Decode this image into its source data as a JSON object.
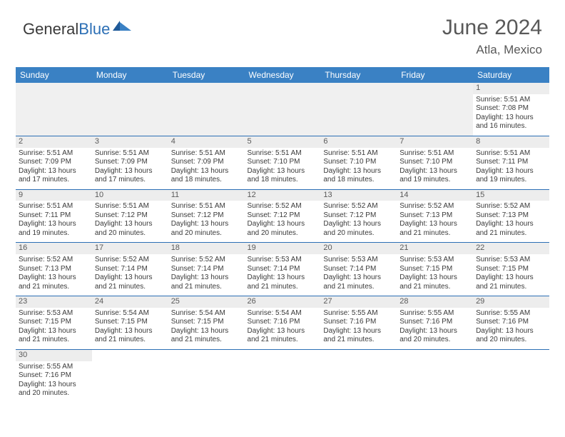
{
  "logo": {
    "text1": "General",
    "text2": "Blue"
  },
  "title": "June 2024",
  "location": "Atla, Mexico",
  "header_bg": "#3a81c4",
  "header_fg": "#ffffff",
  "border_color": "#2c6fb5",
  "daynum_bg": "#ededed",
  "empty_bg": "#f0f0f0",
  "text_color": "#3a3a3a",
  "columns": [
    "Sunday",
    "Monday",
    "Tuesday",
    "Wednesday",
    "Thursday",
    "Friday",
    "Saturday"
  ],
  "weeks": [
    [
      null,
      null,
      null,
      null,
      null,
      null,
      {
        "n": "1",
        "sr": "Sunrise: 5:51 AM",
        "ss": "Sunset: 7:08 PM",
        "d1": "Daylight: 13 hours",
        "d2": "and 16 minutes."
      }
    ],
    [
      {
        "n": "2",
        "sr": "Sunrise: 5:51 AM",
        "ss": "Sunset: 7:09 PM",
        "d1": "Daylight: 13 hours",
        "d2": "and 17 minutes."
      },
      {
        "n": "3",
        "sr": "Sunrise: 5:51 AM",
        "ss": "Sunset: 7:09 PM",
        "d1": "Daylight: 13 hours",
        "d2": "and 17 minutes."
      },
      {
        "n": "4",
        "sr": "Sunrise: 5:51 AM",
        "ss": "Sunset: 7:09 PM",
        "d1": "Daylight: 13 hours",
        "d2": "and 18 minutes."
      },
      {
        "n": "5",
        "sr": "Sunrise: 5:51 AM",
        "ss": "Sunset: 7:10 PM",
        "d1": "Daylight: 13 hours",
        "d2": "and 18 minutes."
      },
      {
        "n": "6",
        "sr": "Sunrise: 5:51 AM",
        "ss": "Sunset: 7:10 PM",
        "d1": "Daylight: 13 hours",
        "d2": "and 18 minutes."
      },
      {
        "n": "7",
        "sr": "Sunrise: 5:51 AM",
        "ss": "Sunset: 7:10 PM",
        "d1": "Daylight: 13 hours",
        "d2": "and 19 minutes."
      },
      {
        "n": "8",
        "sr": "Sunrise: 5:51 AM",
        "ss": "Sunset: 7:11 PM",
        "d1": "Daylight: 13 hours",
        "d2": "and 19 minutes."
      }
    ],
    [
      {
        "n": "9",
        "sr": "Sunrise: 5:51 AM",
        "ss": "Sunset: 7:11 PM",
        "d1": "Daylight: 13 hours",
        "d2": "and 19 minutes."
      },
      {
        "n": "10",
        "sr": "Sunrise: 5:51 AM",
        "ss": "Sunset: 7:12 PM",
        "d1": "Daylight: 13 hours",
        "d2": "and 20 minutes."
      },
      {
        "n": "11",
        "sr": "Sunrise: 5:51 AM",
        "ss": "Sunset: 7:12 PM",
        "d1": "Daylight: 13 hours",
        "d2": "and 20 minutes."
      },
      {
        "n": "12",
        "sr": "Sunrise: 5:52 AM",
        "ss": "Sunset: 7:12 PM",
        "d1": "Daylight: 13 hours",
        "d2": "and 20 minutes."
      },
      {
        "n": "13",
        "sr": "Sunrise: 5:52 AM",
        "ss": "Sunset: 7:12 PM",
        "d1": "Daylight: 13 hours",
        "d2": "and 20 minutes."
      },
      {
        "n": "14",
        "sr": "Sunrise: 5:52 AM",
        "ss": "Sunset: 7:13 PM",
        "d1": "Daylight: 13 hours",
        "d2": "and 21 minutes."
      },
      {
        "n": "15",
        "sr": "Sunrise: 5:52 AM",
        "ss": "Sunset: 7:13 PM",
        "d1": "Daylight: 13 hours",
        "d2": "and 21 minutes."
      }
    ],
    [
      {
        "n": "16",
        "sr": "Sunrise: 5:52 AM",
        "ss": "Sunset: 7:13 PM",
        "d1": "Daylight: 13 hours",
        "d2": "and 21 minutes."
      },
      {
        "n": "17",
        "sr": "Sunrise: 5:52 AM",
        "ss": "Sunset: 7:14 PM",
        "d1": "Daylight: 13 hours",
        "d2": "and 21 minutes."
      },
      {
        "n": "18",
        "sr": "Sunrise: 5:52 AM",
        "ss": "Sunset: 7:14 PM",
        "d1": "Daylight: 13 hours",
        "d2": "and 21 minutes."
      },
      {
        "n": "19",
        "sr": "Sunrise: 5:53 AM",
        "ss": "Sunset: 7:14 PM",
        "d1": "Daylight: 13 hours",
        "d2": "and 21 minutes."
      },
      {
        "n": "20",
        "sr": "Sunrise: 5:53 AM",
        "ss": "Sunset: 7:14 PM",
        "d1": "Daylight: 13 hours",
        "d2": "and 21 minutes."
      },
      {
        "n": "21",
        "sr": "Sunrise: 5:53 AM",
        "ss": "Sunset: 7:15 PM",
        "d1": "Daylight: 13 hours",
        "d2": "and 21 minutes."
      },
      {
        "n": "22",
        "sr": "Sunrise: 5:53 AM",
        "ss": "Sunset: 7:15 PM",
        "d1": "Daylight: 13 hours",
        "d2": "and 21 minutes."
      }
    ],
    [
      {
        "n": "23",
        "sr": "Sunrise: 5:53 AM",
        "ss": "Sunset: 7:15 PM",
        "d1": "Daylight: 13 hours",
        "d2": "and 21 minutes."
      },
      {
        "n": "24",
        "sr": "Sunrise: 5:54 AM",
        "ss": "Sunset: 7:15 PM",
        "d1": "Daylight: 13 hours",
        "d2": "and 21 minutes."
      },
      {
        "n": "25",
        "sr": "Sunrise: 5:54 AM",
        "ss": "Sunset: 7:15 PM",
        "d1": "Daylight: 13 hours",
        "d2": "and 21 minutes."
      },
      {
        "n": "26",
        "sr": "Sunrise: 5:54 AM",
        "ss": "Sunset: 7:16 PM",
        "d1": "Daylight: 13 hours",
        "d2": "and 21 minutes."
      },
      {
        "n": "27",
        "sr": "Sunrise: 5:55 AM",
        "ss": "Sunset: 7:16 PM",
        "d1": "Daylight: 13 hours",
        "d2": "and 21 minutes."
      },
      {
        "n": "28",
        "sr": "Sunrise: 5:55 AM",
        "ss": "Sunset: 7:16 PM",
        "d1": "Daylight: 13 hours",
        "d2": "and 20 minutes."
      },
      {
        "n": "29",
        "sr": "Sunrise: 5:55 AM",
        "ss": "Sunset: 7:16 PM",
        "d1": "Daylight: 13 hours",
        "d2": "and 20 minutes."
      }
    ],
    [
      {
        "n": "30",
        "sr": "Sunrise: 5:55 AM",
        "ss": "Sunset: 7:16 PM",
        "d1": "Daylight: 13 hours",
        "d2": "and 20 minutes."
      },
      null,
      null,
      null,
      null,
      null,
      null
    ]
  ]
}
